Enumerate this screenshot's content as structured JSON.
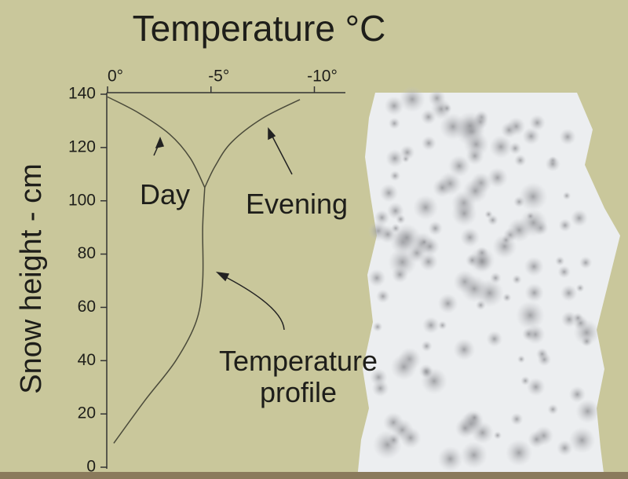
{
  "chart_data": {
    "type": "line",
    "title": "Temperature °C",
    "y_label": "Snow height - cm",
    "xlim": [
      0,
      -11.5
    ],
    "xticks": [
      {
        "value": 0,
        "label": "0°"
      },
      {
        "value": -5,
        "label": "-5°"
      },
      {
        "value": -10,
        "label": "-10°"
      }
    ],
    "ylim": [
      0,
      140
    ],
    "yticks": [
      0,
      20,
      40,
      60,
      80,
      100,
      120,
      140
    ],
    "series": [
      {
        "name": "Day",
        "color": "#4a4a3a",
        "x": [
          0,
          -1.5,
          -3,
          -4,
          -4.7
        ],
        "values": [
          139,
          133,
          125,
          116,
          105
        ]
      },
      {
        "name": "Evening",
        "color": "#4a4a3a",
        "x": [
          -9.3,
          -7.5,
          -6,
          -5.2,
          -4.7
        ],
        "values": [
          138,
          131,
          122,
          113,
          105
        ]
      },
      {
        "name": "Temperature profile",
        "color": "#4a4a3a",
        "x": [
          -4.7,
          -4.6,
          -4.6,
          -4.3,
          -3.3,
          -1.8,
          -0.3
        ],
        "values": [
          105,
          90,
          70,
          55,
          40,
          25,
          9
        ]
      }
    ]
  }
}
